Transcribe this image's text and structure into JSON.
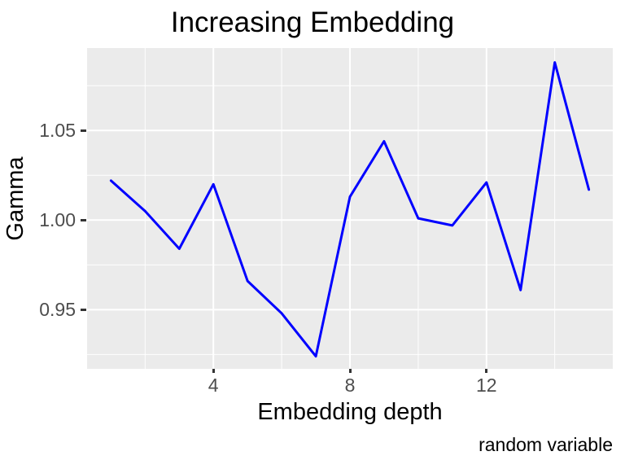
{
  "chart_data": {
    "type": "line",
    "title": "Increasing Embedding",
    "xlabel": "Embedding depth",
    "ylabel": "Gamma",
    "caption": "random variable",
    "x": [
      1,
      2,
      3,
      4,
      5,
      6,
      7,
      8,
      9,
      10,
      11,
      12,
      13,
      14,
      15
    ],
    "y": [
      1.022,
      1.005,
      0.984,
      1.02,
      0.966,
      0.948,
      0.924,
      1.013,
      1.044,
      1.001,
      0.997,
      1.021,
      0.961,
      1.088,
      1.017
    ],
    "xlim": [
      0.3,
      15.7
    ],
    "ylim": [
      0.917,
      1.096
    ],
    "xticks": {
      "values": [
        4,
        8,
        12
      ],
      "labels": [
        "4",
        "8",
        "12"
      ]
    },
    "yticks": {
      "values": [
        0.95,
        1.0,
        1.05
      ],
      "labels": [
        "0.95",
        "1.00",
        "1.05"
      ]
    },
    "minor_xticks": [
      2,
      6,
      10,
      14
    ],
    "minor_yticks": [
      0.925,
      0.975,
      1.025,
      1.075
    ],
    "grid": "white major and minor gridlines on gray panel",
    "legend": "none",
    "style": {
      "line_color": "#0000FF",
      "line_width": 3,
      "panel_bg": "#EBEBEB",
      "grid_color": "#FFFFFF",
      "tick_mark_color": "#333333",
      "tick_label_color": "#4D4D4D",
      "text_color": "#000000",
      "figure_bg": "#FFFFFF"
    }
  }
}
